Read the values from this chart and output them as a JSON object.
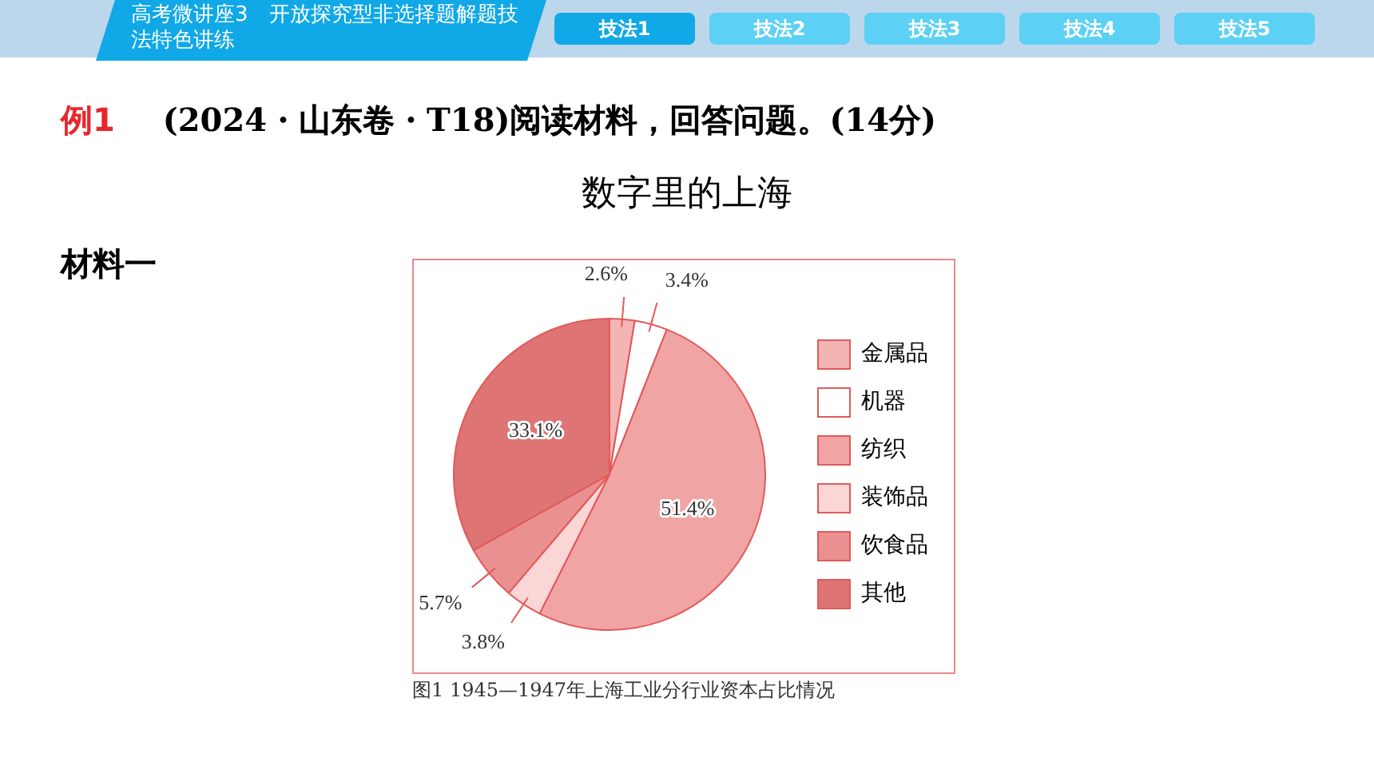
{
  "chart_data": {
    "type": "pie",
    "title": "数字里的上海",
    "categories": [
      "金属品",
      "机器",
      "纺织",
      "装饰品",
      "饮食品",
      "其他"
    ],
    "values": [
      2.6,
      3.4,
      51.4,
      3.8,
      5.7,
      33.1
    ],
    "colors": [
      "#f3b4b4",
      "#ffffff",
      "#f0a4a4",
      "#fad6d6",
      "#eb9090",
      "#de7474"
    ],
    "value_labels": [
      "2.6%",
      "3.4%",
      "51.4%",
      "3.8%",
      "5.7%",
      "33.1%"
    ],
    "legend": "right",
    "annotations": [
      "高考微讲座3　开放探究型非选择题解题技法特色讲练",
      "技法1",
      "技法2",
      "技法3",
      "技法4",
      "技法5",
      "例1",
      "(2024・山东卷・T18)阅读材料，回答问题。(14分)",
      "材料一",
      "图1 1945—1947年上海工业分行业资本占比情况"
    ]
  }
}
